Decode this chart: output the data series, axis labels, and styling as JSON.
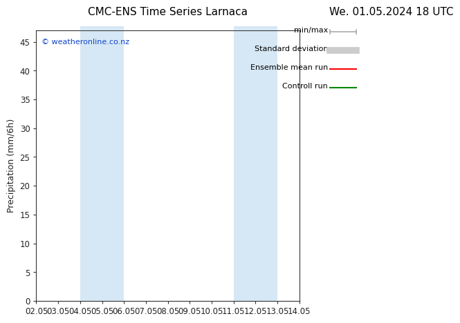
{
  "title_left": "CMC-ENS Time Series Larnaca",
  "title_right": "We. 01.05.2024 18 UTC",
  "ylabel": "Precipitation (mm/6h)",
  "watermark": "© weatheronline.co.nz",
  "watermark_color": "#1144cc",
  "background_color": "#ffffff",
  "plot_bg_color": "#ffffff",
  "xmin": 2.05,
  "xmax": 14.05,
  "ymin": 0,
  "ymax": 47,
  "yticks": [
    0,
    5,
    10,
    15,
    20,
    25,
    30,
    35,
    40,
    45
  ],
  "xtick_labels": [
    "02.05",
    "03.05",
    "04.05",
    "05.05",
    "06.05",
    "07.05",
    "08.05",
    "09.05",
    "10.05",
    "11.05",
    "12.05",
    "13.05",
    "14.05"
  ],
  "xtick_positions": [
    2.05,
    3.05,
    4.05,
    5.05,
    6.05,
    7.05,
    8.05,
    9.05,
    10.05,
    11.05,
    12.05,
    13.05,
    14.05
  ],
  "shaded_regions": [
    {
      "xmin": 4.05,
      "xmax": 6.05,
      "color": "#d6e8f5"
    },
    {
      "xmin": 11.05,
      "xmax": 13.05,
      "color": "#d6e8f5"
    }
  ],
  "legend_items": [
    {
      "label": "min/max",
      "color": "#aaaaaa",
      "lw": 1.2,
      "ls": "-",
      "style": "minmax"
    },
    {
      "label": "Standard deviation",
      "color": "#cccccc",
      "lw": 7,
      "ls": "-",
      "style": "band"
    },
    {
      "label": "Ensemble mean run",
      "color": "#ff0000",
      "lw": 1.5,
      "ls": "-",
      "style": "line"
    },
    {
      "label": "Controll run",
      "color": "#008800",
      "lw": 1.5,
      "ls": "-",
      "style": "line"
    }
  ],
  "font_family": "DejaVu Sans",
  "title_fontsize": 11,
  "tick_fontsize": 8.5,
  "ylabel_fontsize": 9,
  "watermark_fontsize": 8,
  "legend_fontsize": 8
}
